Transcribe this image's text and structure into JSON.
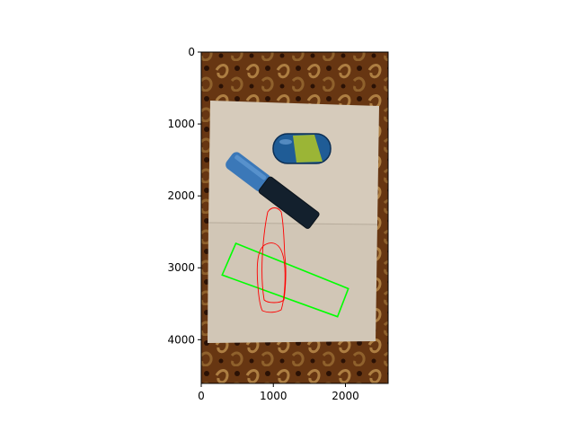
{
  "figure": {
    "x_axis": {
      "range": [
        0,
        2592
      ],
      "ticks": [
        0,
        1000,
        2000
      ]
    },
    "y_axis": {
      "range": [
        0,
        4608
      ],
      "inverted": true,
      "ticks": [
        0,
        1000,
        2000,
        3000,
        4000
      ]
    },
    "image_content": {
      "description_none": "",
      "background": "patterned brown carpet",
      "paper_sheets": 2,
      "objects": [
        "blue highlighter marker",
        "blue oval eraser/pencil case with yellow stripe"
      ]
    },
    "overlays": {
      "green_rectangle": {
        "color": "#00ff00",
        "corners": [
          [
            480,
            2660
          ],
          [
            2040,
            3290
          ],
          [
            1890,
            3680
          ],
          [
            290,
            3100
          ]
        ]
      },
      "red_contours": {
        "color": "#ff0000",
        "count": 2
      }
    }
  }
}
